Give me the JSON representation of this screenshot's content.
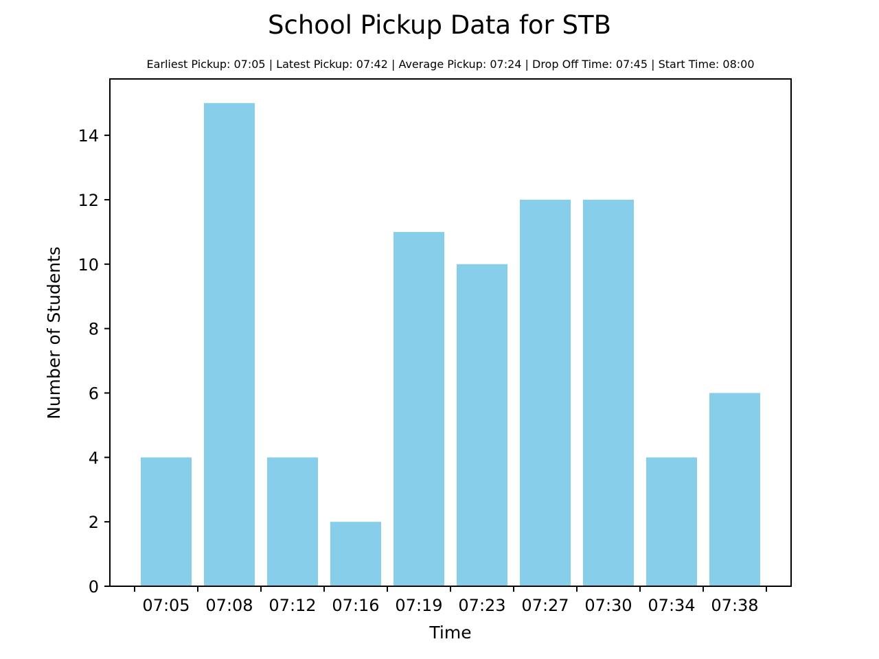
{
  "chart_data": {
    "type": "bar",
    "title": "School Pickup Data for STB",
    "subtitle": "Earliest Pickup: 07:05 | Latest Pickup: 07:42 | Average Pickup: 07:24 | Drop Off Time: 07:45 | Start Time: 08:00",
    "xlabel": "Time",
    "ylabel": "Number of Students",
    "categories": [
      "07:05",
      "07:08",
      "07:12",
      "07:16",
      "07:19",
      "07:23",
      "07:27",
      "07:30",
      "07:34",
      "07:38"
    ],
    "values": [
      4,
      15,
      4,
      2,
      11,
      10,
      12,
      12,
      4,
      6
    ],
    "ylim": [
      0,
      15.75
    ],
    "yticks": [
      0,
      2,
      4,
      6,
      8,
      10,
      12,
      14
    ],
    "bar_color": "#87ceeb",
    "grid": false,
    "legend": false
  }
}
